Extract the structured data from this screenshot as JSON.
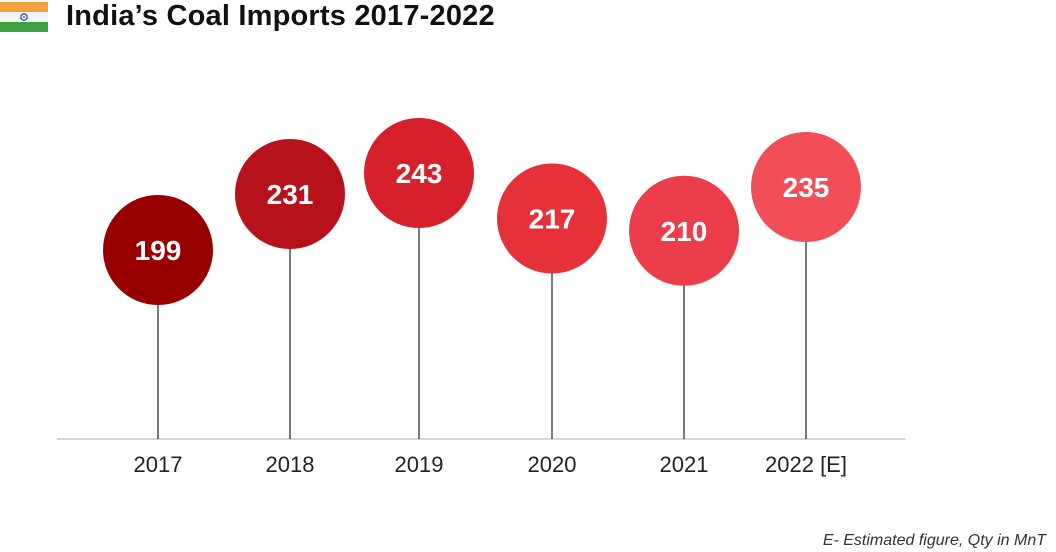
{
  "header": {
    "title": "India’s Coal Imports 2017-2022"
  },
  "footnote": "E- Estimated figure, Qty in MnT",
  "chart_data": {
    "type": "bar",
    "title": "India’s Coal Imports 2017-2022",
    "categories": [
      "2017",
      "2018",
      "2019",
      "2020",
      "2021",
      "2022 [E]"
    ],
    "values": [
      199,
      231,
      243,
      217,
      210,
      235
    ],
    "colors": [
      "#980000",
      "#B5121B",
      "#D6202C",
      "#E5313A",
      "#EC3E4A",
      "#F24E58"
    ],
    "xlabel": "",
    "ylabel": "",
    "grid": false,
    "legend": "none"
  }
}
